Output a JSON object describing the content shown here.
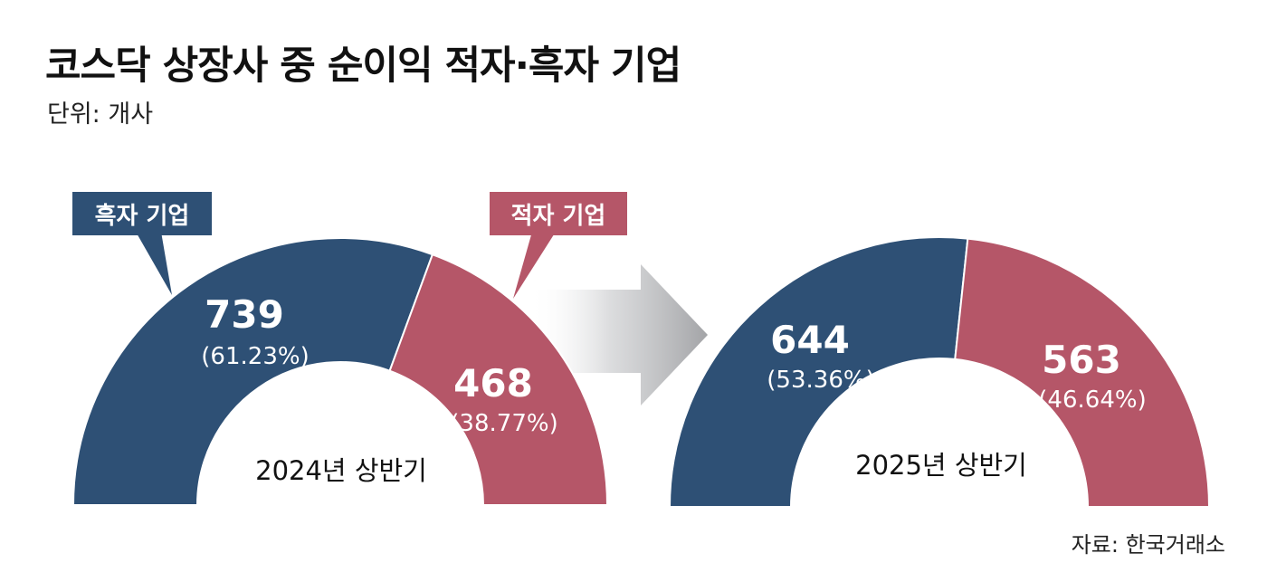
{
  "header": {
    "title": "코스닥 상장사 중 순이익 적자·흑자 기업",
    "unit": "단위: 개사"
  },
  "source": "자료: 한국거래소",
  "colors": {
    "profit": "#2e5075",
    "loss": "#b55668",
    "arrow": "#a9aaad"
  },
  "legend": {
    "profit_label": "흑자 기업",
    "loss_label": "적자 기업"
  },
  "chart_data": [
    {
      "type": "pie",
      "title": "2024년 상반기",
      "series": [
        {
          "name": "흑자 기업",
          "value": 739,
          "label": "739",
          "pct_label": "(61.23%)"
        },
        {
          "name": "적자 기업",
          "value": 468,
          "label": "468",
          "pct_label": "(38.77%)"
        }
      ]
    },
    {
      "type": "pie",
      "title": "2025년 상반기",
      "series": [
        {
          "name": "흑자 기업",
          "value": 644,
          "label": "644",
          "pct_label": "(53.36%)"
        },
        {
          "name": "적자 기업",
          "value": 563,
          "label": "563",
          "pct_label": "(46.64%)"
        }
      ]
    }
  ]
}
